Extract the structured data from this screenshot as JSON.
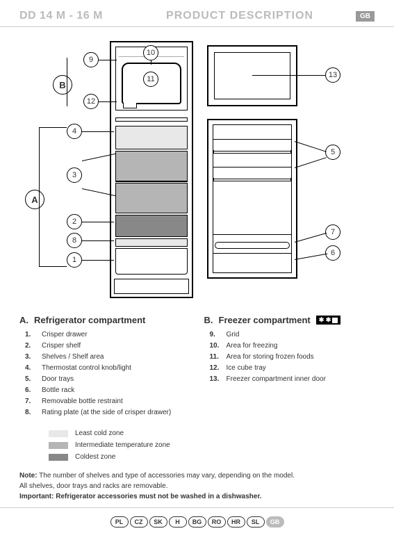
{
  "header": {
    "model": "DD 14 M - 16 M",
    "title": "PRODUCT DESCRIPTION",
    "badge": "GB"
  },
  "diagram": {
    "section_labels": {
      "A": "A",
      "B": "B"
    },
    "callouts": {
      "1": "1",
      "2": "2",
      "3": "3",
      "4": "4",
      "5": "5",
      "6": "6",
      "7": "7",
      "8": "8",
      "9": "9",
      "10": "10",
      "11": "11",
      "12": "12",
      "13": "13"
    }
  },
  "lists": {
    "colA": {
      "letter": "A.",
      "heading": "Refrigerator compartment",
      "items": [
        {
          "n": "1.",
          "t": "Crisper drawer"
        },
        {
          "n": "2.",
          "t": "Crisper shelf"
        },
        {
          "n": "3.",
          "t": "Shelves / Shelf area"
        },
        {
          "n": "4.",
          "t": "Thermostat control knob/light"
        },
        {
          "n": "5.",
          "t": "Door trays"
        },
        {
          "n": "6.",
          "t": "Bottle rack"
        },
        {
          "n": "7.",
          "t": "Removable bottle restraint"
        },
        {
          "n": "8.",
          "t": "Rating plate (at the side of crisper drawer)"
        }
      ]
    },
    "colB": {
      "letter": "B.",
      "heading": "Freezer compartment",
      "star": "✱ ✱",
      "items": [
        {
          "n": "9.",
          "t": "Grid"
        },
        {
          "n": "10.",
          "t": "Area for freezing"
        },
        {
          "n": "11.",
          "t": "Area for storing frozen foods"
        },
        {
          "n": "12.",
          "t": "Ice cube tray"
        },
        {
          "n": "13.",
          "t": "Freezer compartment inner door"
        }
      ]
    }
  },
  "legend": {
    "items": [
      {
        "color": "#e8e8e8",
        "label": "Least cold zone"
      },
      {
        "color": "#b5b5b5",
        "label": "Intermediate temperature zone"
      },
      {
        "color": "#888888",
        "label": "Coldest zone"
      }
    ]
  },
  "notes": {
    "note_label": "Note:",
    "note_text": " The number of shelves and type of accessories may vary, depending on the model.",
    "line2": "All shelves, door trays and racks are removable.",
    "imp_label": "Important:",
    "imp_text": " Refrigerator accessories must not be washed in a dishwasher."
  },
  "footer": {
    "langs": [
      "PL",
      "CZ",
      "SK",
      "H",
      "BG",
      "RO",
      "HR",
      "SL",
      "GB"
    ],
    "active": "GB"
  }
}
